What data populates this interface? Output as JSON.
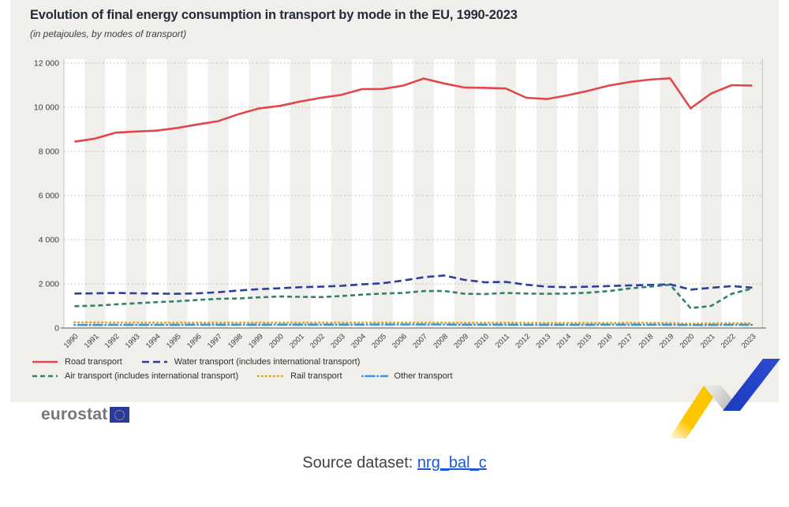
{
  "figure": {
    "title": "Evolution of final energy consumption in transport by mode in the EU, 1990-2023",
    "subtitle": "(in petajoules, by modes of transport)",
    "background": "#f1efec",
    "band_color": "#ffffff"
  },
  "chart_data": {
    "type": "line",
    "title": "Evolution of final energy consumption in transport by mode in the EU, 1990-2023",
    "subtitle": "(in petajoules, by modes of transport)",
    "x": [
      1990,
      1991,
      1992,
      1993,
      1994,
      1995,
      1996,
      1997,
      1998,
      1999,
      2000,
      2001,
      2002,
      2003,
      2004,
      2005,
      2006,
      2007,
      2008,
      2009,
      2010,
      2011,
      2012,
      2013,
      2014,
      2015,
      2016,
      2017,
      2018,
      2019,
      2020,
      2021,
      2022,
      2023
    ],
    "ylim": [
      0,
      12000
    ],
    "yticks": [
      0,
      2000,
      4000,
      6000,
      8000,
      10000,
      12000
    ],
    "grid": "horizontal-dotted",
    "plot_style": "alternating year bands",
    "legend_position": "bottom-left",
    "series": [
      {
        "name": "Road transport",
        "color": "#e2474d",
        "line_style": "solid",
        "values": [
          8440,
          8580,
          8850,
          8900,
          8940,
          9060,
          9220,
          9370,
          9690,
          9950,
          10060,
          10260,
          10430,
          10560,
          10820,
          10830,
          10980,
          11300,
          11080,
          10890,
          10880,
          10850,
          10430,
          10370,
          10540,
          10740,
          10980,
          11140,
          11250,
          11310,
          9950,
          10620,
          11000,
          10980
        ]
      },
      {
        "name": "Water transport (includes international transport)",
        "color": "#2c3f9c",
        "line_style": "dashed-long",
        "values": [
          1560,
          1570,
          1590,
          1570,
          1560,
          1550,
          1570,
          1620,
          1700,
          1760,
          1800,
          1850,
          1870,
          1910,
          1980,
          2030,
          2150,
          2300,
          2380,
          2180,
          2070,
          2090,
          1960,
          1870,
          1850,
          1870,
          1900,
          1930,
          1950,
          1980,
          1740,
          1820,
          1900,
          1830
        ]
      },
      {
        "name": "Air transport (includes international transport)",
        "color": "#338070",
        "line_style": "dashed",
        "values": [
          990,
          1010,
          1070,
          1120,
          1170,
          1210,
          1270,
          1320,
          1340,
          1390,
          1430,
          1410,
          1400,
          1450,
          1510,
          1560,
          1590,
          1670,
          1680,
          1550,
          1540,
          1590,
          1560,
          1550,
          1560,
          1600,
          1670,
          1790,
          1870,
          1960,
          900,
          1000,
          1550,
          1790
        ]
      },
      {
        "name": "Rail transport",
        "color": "#d9a91a",
        "line_style": "dotted",
        "values": [
          260,
          255,
          250,
          250,
          245,
          245,
          245,
          245,
          245,
          245,
          250,
          250,
          245,
          245,
          250,
          250,
          250,
          250,
          250,
          240,
          240,
          240,
          235,
          230,
          230,
          230,
          230,
          235,
          235,
          230,
          205,
          215,
          220,
          215
        ]
      },
      {
        "name": "Other transport",
        "color": "#4192d9",
        "line_style": "dashdot",
        "values": [
          140,
          140,
          145,
          145,
          145,
          145,
          150,
          150,
          150,
          150,
          155,
          155,
          155,
          155,
          155,
          160,
          160,
          160,
          160,
          150,
          150,
          150,
          145,
          145,
          145,
          145,
          150,
          150,
          150,
          150,
          135,
          140,
          145,
          145
        ]
      }
    ]
  },
  "legend": {
    "rows": [
      [
        0,
        1
      ],
      [
        2,
        3,
        4
      ]
    ]
  },
  "branding": {
    "logo_text": "eurostat"
  },
  "footer": {
    "source_label": "Source dataset:",
    "source_link": "nrg_bal_c"
  },
  "colors": {
    "gridline": "#b5b5b5",
    "x_axis": "#787878",
    "y_axis": "#c4c4c4",
    "tick_label": "#3c3c3c",
    "zigzag_yellow": "#fdc500",
    "zigzag_blue": "#2443c4",
    "zigzag_silver": "#c0c0c0",
    "eu_flag_blue": "#2a3a9c",
    "eu_flag_stars": "#ffd617"
  }
}
